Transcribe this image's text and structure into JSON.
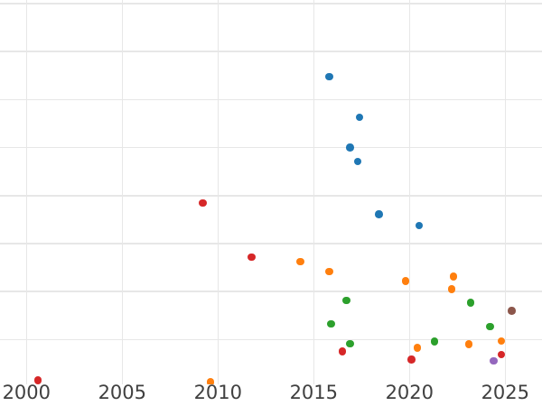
{
  "style": {
    "background": "#ffffff",
    "grid_color": "#e7e7e7",
    "tick_label_color": "#404040"
  },
  "chart_data": {
    "type": "scatter",
    "title": "",
    "xlabel": "",
    "ylabel": "",
    "grid": true,
    "legend": "none",
    "x_ticks": [
      2000,
      2005,
      2010,
      2015,
      2020,
      2025
    ],
    "x_tick_labels": [
      "2000",
      "2005",
      "2010",
      "2015",
      "2020",
      "2025"
    ],
    "x_range_visible": [
      1998.6,
      2026.9
    ],
    "y_gridlines": [
      1,
      2,
      3,
      4,
      5,
      6,
      7,
      8
    ],
    "y_range_visible": [
      0.08,
      8.07
    ],
    "y_tick_labels_visible": false,
    "marker": "circle",
    "series": [
      {
        "name": "blue",
        "color": "#1f77b4",
        "points": [
          [
            2015.8,
            6.48
          ],
          [
            2017.4,
            5.63
          ],
          [
            2016.9,
            5.0
          ],
          [
            2017.3,
            4.71
          ],
          [
            2018.4,
            3.61
          ],
          [
            2020.5,
            3.38
          ]
        ]
      },
      {
        "name": "orange",
        "color": "#ff7f0e",
        "points": [
          [
            2009.6,
            0.11
          ],
          [
            2014.3,
            2.62
          ],
          [
            2015.8,
            2.42
          ],
          [
            2019.8,
            2.22
          ],
          [
            2022.3,
            2.31
          ],
          [
            2022.2,
            2.05
          ],
          [
            2020.4,
            0.83
          ],
          [
            2023.1,
            0.9
          ],
          [
            2024.8,
            0.97
          ]
        ]
      },
      {
        "name": "green",
        "color": "#2ca02c",
        "points": [
          [
            2016.7,
            1.82
          ],
          [
            2015.9,
            1.33
          ],
          [
            2016.9,
            0.91
          ],
          [
            2021.3,
            0.96
          ],
          [
            2023.2,
            1.77
          ],
          [
            2024.2,
            1.27
          ]
        ]
      },
      {
        "name": "red",
        "color": "#d62728",
        "points": [
          [
            2000.6,
            0.15
          ],
          [
            2009.2,
            3.85
          ],
          [
            2011.75,
            2.72
          ],
          [
            2016.5,
            0.75
          ],
          [
            2020.1,
            0.58
          ],
          [
            2024.8,
            0.69
          ]
        ]
      },
      {
        "name": "purple",
        "color": "#9467bd",
        "points": [
          [
            2024.4,
            0.56
          ]
        ]
      },
      {
        "name": "brown",
        "color": "#8c564b",
        "points": [
          [
            2025.35,
            1.6
          ]
        ]
      }
    ]
  }
}
